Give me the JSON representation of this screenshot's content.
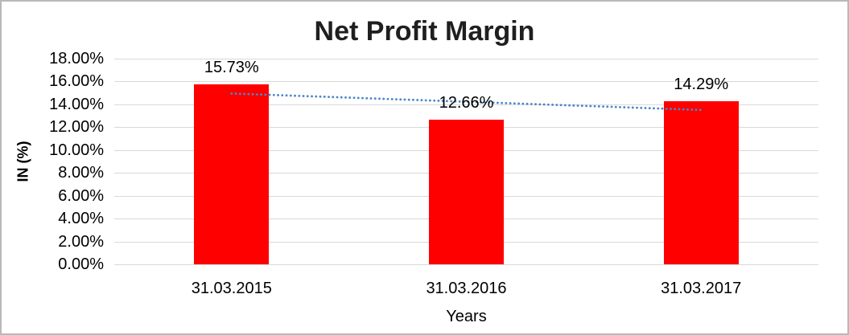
{
  "chart_data": {
    "type": "bar",
    "title": "Net Profit Margin",
    "xlabel": "Years",
    "ylabel": "IN (%)",
    "categories": [
      "31.03.2015",
      "31.03.2016",
      "31.03.2017"
    ],
    "series": [
      {
        "name": "Net Profit Margin",
        "values": [
          15.73,
          12.66,
          14.29
        ]
      }
    ],
    "data_labels": [
      "15.73%",
      "12.66%",
      "14.29%"
    ],
    "ylim": [
      0,
      18
    ],
    "ytick_step": 2,
    "ytick_labels": [
      "0.00%",
      "2.00%",
      "4.00%",
      "6.00%",
      "8.00%",
      "10.00%",
      "12.00%",
      "14.00%",
      "16.00%",
      "18.00%"
    ],
    "legend": "none",
    "grid": "horizontal",
    "bar_color": "#ff0000",
    "gridline_color": "#d9d9d9",
    "text_color": "#000000",
    "title_color": "#1f1f1f",
    "trendline": {
      "type": "linear",
      "style": "dotted",
      "color": "#4a86c8",
      "start_value": 14.95,
      "end_value": 13.51
    }
  }
}
